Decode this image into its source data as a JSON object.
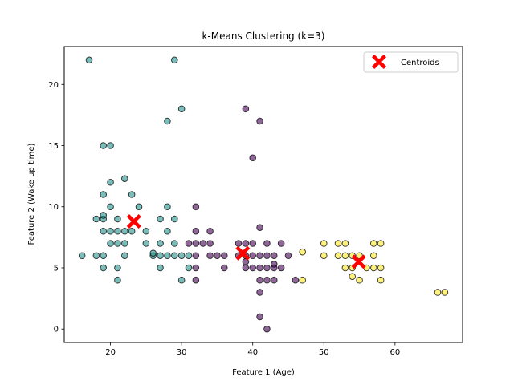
{
  "chart_data": {
    "type": "scatter",
    "title": "k-Means Clustering (k=3)",
    "xlabel": "Feature 1 (Age)",
    "ylabel": "Feature 2 (Wake up time)",
    "xlim": [
      13.5,
      69.5
    ],
    "ylim": [
      -1.1,
      23.1
    ],
    "xticks": [
      20,
      30,
      40,
      50,
      60
    ],
    "yticks": [
      0,
      5,
      10,
      15,
      20
    ],
    "grid": false,
    "legend": {
      "position": "top-right",
      "entries": [
        "Centroids"
      ]
    },
    "colors": {
      "cluster_0": "#440154",
      "cluster_1": "#21918c",
      "cluster_2": "#fde725",
      "centroid": "#ff0000",
      "point_edge": "#000000"
    },
    "series": [
      {
        "cluster": 0,
        "points": [
          [
            39,
            18
          ],
          [
            41,
            17
          ],
          [
            40,
            14
          ],
          [
            41,
            8.3
          ],
          [
            32,
            10
          ],
          [
            32,
            8
          ],
          [
            34,
            8
          ],
          [
            32,
            7
          ],
          [
            33,
            7
          ],
          [
            34,
            7
          ],
          [
            31,
            7
          ],
          [
            38,
            7
          ],
          [
            39,
            7
          ],
          [
            40,
            7
          ],
          [
            42,
            7
          ],
          [
            44,
            7
          ],
          [
            32,
            6
          ],
          [
            34,
            6
          ],
          [
            35,
            6
          ],
          [
            36,
            6
          ],
          [
            38,
            6
          ],
          [
            39,
            6
          ],
          [
            40,
            6
          ],
          [
            41,
            6
          ],
          [
            42,
            6
          ],
          [
            43,
            6
          ],
          [
            45,
            6
          ],
          [
            39,
            5.5
          ],
          [
            43,
            5.3
          ],
          [
            32,
            5
          ],
          [
            36,
            5
          ],
          [
            39,
            5
          ],
          [
            40,
            5
          ],
          [
            41,
            5
          ],
          [
            42,
            5
          ],
          [
            43,
            5
          ],
          [
            44,
            5
          ],
          [
            32,
            4
          ],
          [
            41,
            4
          ],
          [
            42,
            4
          ],
          [
            43,
            4
          ],
          [
            46,
            4
          ],
          [
            41,
            3
          ],
          [
            41,
            1
          ],
          [
            42,
            0
          ]
        ]
      },
      {
        "cluster": 1,
        "points": [
          [
            17,
            22
          ],
          [
            29,
            22
          ],
          [
            30,
            18
          ],
          [
            28,
            17
          ],
          [
            19,
            15
          ],
          [
            20,
            15
          ],
          [
            20,
            12
          ],
          [
            22,
            12.3
          ],
          [
            23,
            11
          ],
          [
            19,
            11
          ],
          [
            20,
            10
          ],
          [
            24,
            10
          ],
          [
            28,
            10
          ],
          [
            29,
            9
          ],
          [
            18,
            9
          ],
          [
            19,
            9
          ],
          [
            21,
            9
          ],
          [
            27,
            9
          ],
          [
            19,
            9.3
          ],
          [
            19,
            8
          ],
          [
            20,
            8
          ],
          [
            21,
            8
          ],
          [
            22,
            8
          ],
          [
            23,
            8
          ],
          [
            25,
            8
          ],
          [
            28,
            8
          ],
          [
            20,
            7
          ],
          [
            21,
            7
          ],
          [
            22,
            7
          ],
          [
            25,
            7
          ],
          [
            27,
            7
          ],
          [
            29,
            7
          ],
          [
            16,
            6
          ],
          [
            18,
            6
          ],
          [
            19,
            6
          ],
          [
            22,
            6
          ],
          [
            26,
            6
          ],
          [
            27,
            6
          ],
          [
            28,
            6
          ],
          [
            29,
            6
          ],
          [
            30,
            6
          ],
          [
            31,
            6
          ],
          [
            26,
            6.2
          ],
          [
            19,
            5
          ],
          [
            21,
            5
          ],
          [
            27,
            5
          ],
          [
            31,
            5
          ],
          [
            21,
            4
          ],
          [
            30,
            4
          ]
        ]
      },
      {
        "cluster": 2,
        "points": [
          [
            50,
            7
          ],
          [
            52,
            7
          ],
          [
            53,
            7
          ],
          [
            57,
            7
          ],
          [
            58,
            7
          ],
          [
            47,
            6.3
          ],
          [
            50,
            6
          ],
          [
            52,
            6
          ],
          [
            53,
            6
          ],
          [
            54,
            6
          ],
          [
            55,
            6
          ],
          [
            57,
            6
          ],
          [
            53,
            5
          ],
          [
            54,
            5
          ],
          [
            56,
            5
          ],
          [
            57,
            5
          ],
          [
            58,
            5
          ],
          [
            54,
            4.3
          ],
          [
            47,
            4
          ],
          [
            55,
            4
          ],
          [
            58,
            4
          ],
          [
            66,
            3
          ],
          [
            67,
            3
          ]
        ]
      }
    ],
    "centroids": [
      [
        23.3,
        8.8
      ],
      [
        38.6,
        6.2
      ],
      [
        54.9,
        5.5
      ]
    ]
  }
}
